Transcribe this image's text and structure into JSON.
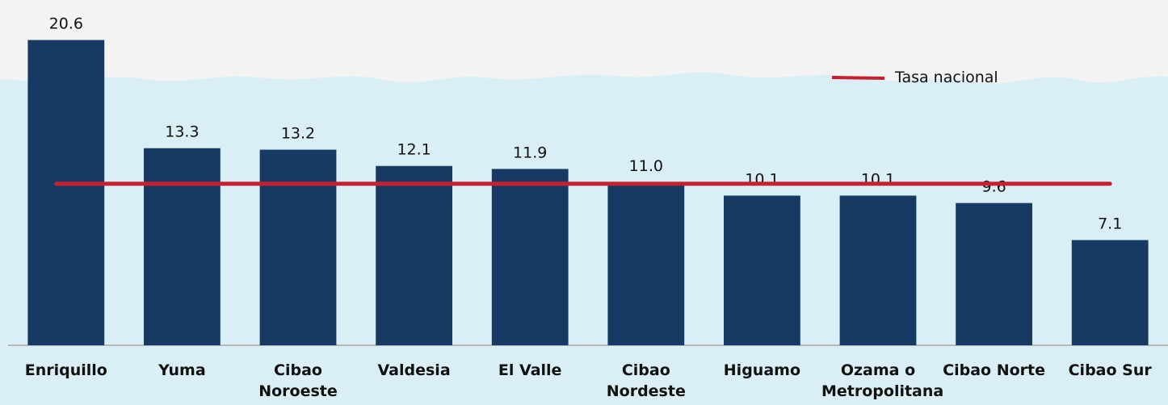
{
  "chart_data": {
    "type": "bar",
    "categories": [
      "Enriquillo",
      "Yuma",
      "Cibao Noroeste",
      "Valdesia",
      "El Valle",
      "Cibao Nordeste",
      "Higuamo",
      "Ozama o Metropolitana",
      "Cibao Norte",
      "Cibao Sur"
    ],
    "values": [
      20.6,
      13.3,
      13.2,
      12.1,
      11.9,
      11.0,
      10.1,
      10.1,
      9.6,
      7.1
    ],
    "value_labels": [
      "20.6",
      "13.3",
      "13.2",
      "12.1",
      "11.9",
      "11.0",
      "10.1",
      "10.1",
      "9.6",
      "7.1"
    ],
    "color": "#173a64",
    "ylim": [
      0,
      23.3
    ],
    "reference_line": {
      "name": "Tasa nacional",
      "value": 10.9,
      "color": "#c8202f"
    }
  }
}
